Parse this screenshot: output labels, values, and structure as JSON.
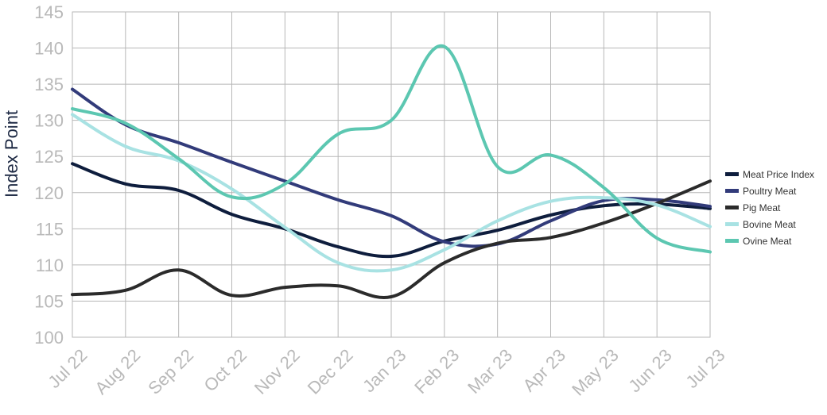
{
  "chart_data": {
    "type": "line",
    "title": "",
    "xlabel": "",
    "ylabel": "Index Point",
    "ylim": [
      100,
      145
    ],
    "yticks": [
      "100",
      "105",
      "110",
      "115",
      "120",
      "125",
      "130",
      "135",
      "140",
      "145"
    ],
    "grid": true,
    "legend_position": "right",
    "categories": [
      "Jul 22",
      "Aug 22",
      "Sep 22",
      "Oct 22",
      "Nov 22",
      "Dec 22",
      "Jan 23",
      "Feb 23",
      "Mar 23",
      "Apr 23",
      "May 23",
      "Jun 23",
      "Jul 23"
    ],
    "series": [
      {
        "name": "Meat Price Index",
        "color": "#0e1d3d",
        "values": [
          124.0,
          121.2,
          120.3,
          117.0,
          115.0,
          112.5,
          111.2,
          113.3,
          114.8,
          116.9,
          118.2,
          118.4,
          117.8
        ]
      },
      {
        "name": "Poultry Meat",
        "color": "#323b7a",
        "values": [
          134.3,
          129.4,
          126.9,
          124.2,
          121.6,
          119.0,
          116.8,
          113.2,
          112.9,
          116.1,
          118.9,
          119.0,
          118.1
        ]
      },
      {
        "name": "Pig Meat",
        "color": "#2b2b2b",
        "values": [
          105.9,
          106.5,
          109.3,
          105.8,
          106.9,
          107.1,
          105.6,
          110.3,
          113.0,
          113.8,
          115.8,
          118.5,
          121.6
        ]
      },
      {
        "name": "Bovine Meat",
        "color": "#a8e2e3",
        "values": [
          130.8,
          126.4,
          124.4,
          120.5,
          115.2,
          110.3,
          109.3,
          112.1,
          116.1,
          118.8,
          119.3,
          118.3,
          115.3
        ]
      },
      {
        "name": "Ovine Meat",
        "color": "#5cc7b1",
        "values": [
          131.6,
          129.6,
          124.7,
          119.4,
          121.2,
          128.1,
          130.0,
          140.2,
          123.6,
          125.2,
          120.7,
          113.7,
          111.8
        ]
      }
    ]
  }
}
